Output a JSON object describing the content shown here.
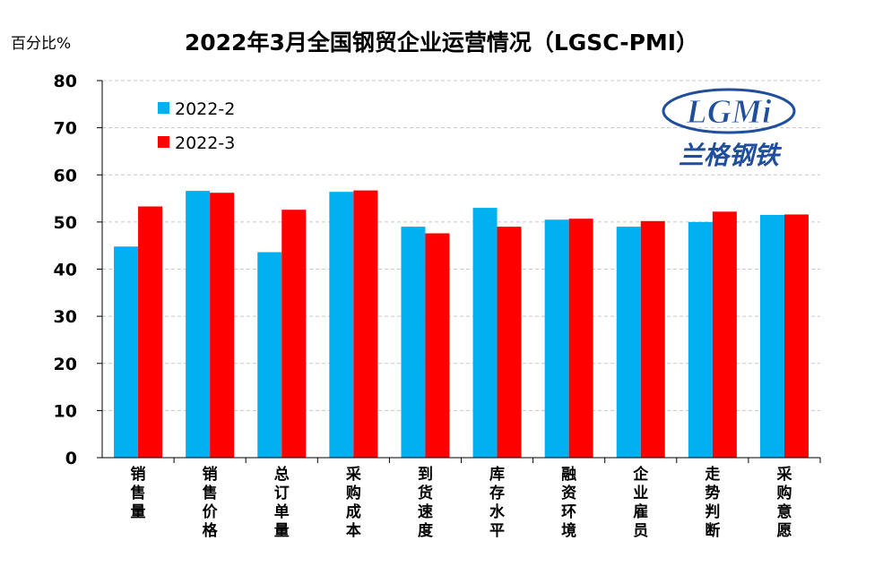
{
  "chart_data": {
    "type": "bar",
    "title": "2022年3月全国钢贸企业运营情况（LGSC-PMI）",
    "ylabel": "百分比%",
    "ylim": [
      0,
      80
    ],
    "yticks": [
      0,
      10,
      20,
      30,
      40,
      50,
      60,
      70,
      80
    ],
    "grid": true,
    "legend_position": "top-left",
    "categories": [
      "销售量",
      "销售价格",
      "总订单量",
      "采购成本",
      "到货速度",
      "库存水平",
      "融资环境",
      "企业雇员",
      "走势判断",
      "采购意愿"
    ],
    "series": [
      {
        "name": "2022-2",
        "color": "#00b0f0",
        "values": [
          44.8,
          56.6,
          43.6,
          56.4,
          49.0,
          53.0,
          50.5,
          49.0,
          50.0,
          51.5
        ]
      },
      {
        "name": "2022-3",
        "color": "#ff0000",
        "values": [
          53.3,
          56.2,
          52.6,
          56.7,
          47.6,
          49.0,
          50.7,
          50.2,
          52.2,
          51.6
        ]
      }
    ]
  },
  "logo": {
    "text": "LGMi",
    "subtitle": "兰格钢铁"
  }
}
